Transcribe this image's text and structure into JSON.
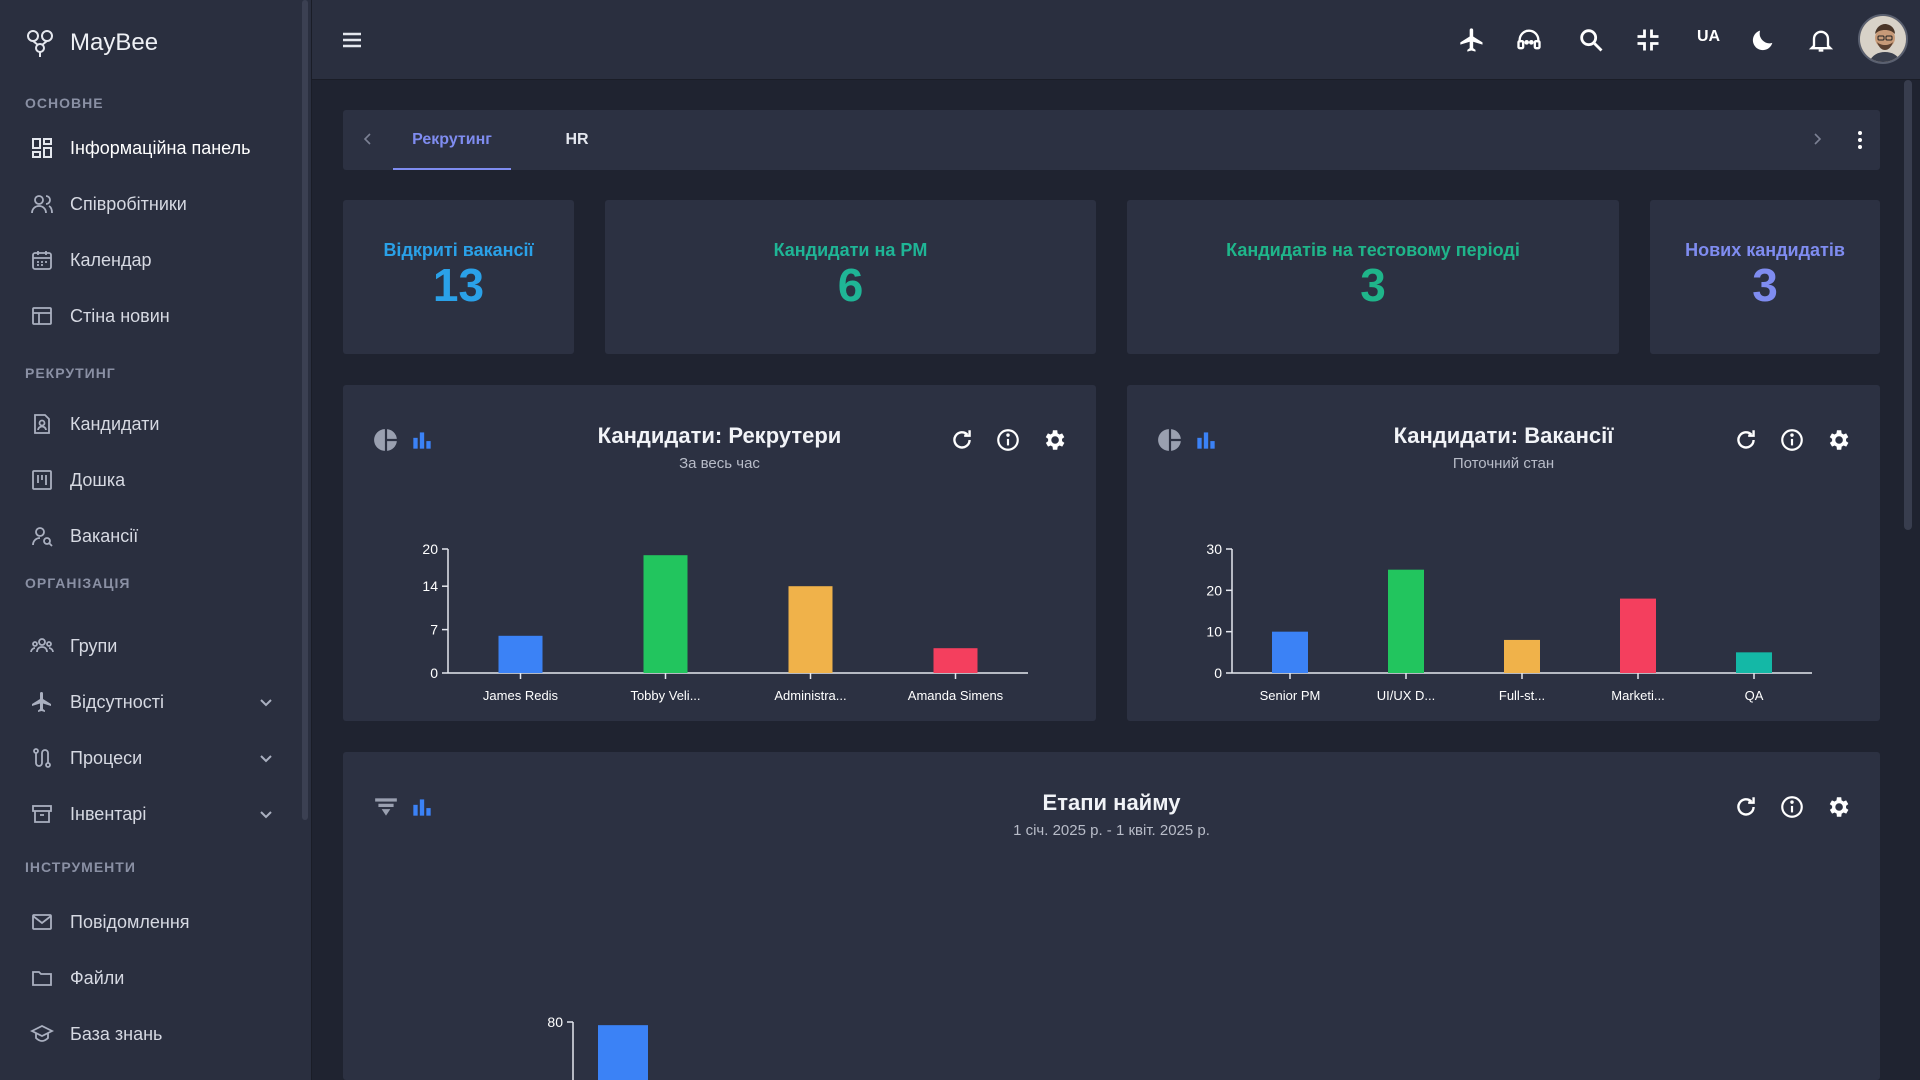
{
  "app": {
    "name": "MayBee"
  },
  "sidebar": {
    "sections": {
      "main": "ОСНОВНЕ",
      "recruiting": "РЕКРУТИНГ",
      "organization": "ОРГАНІЗАЦІЯ",
      "tools": "ІНСТРУМЕНТИ"
    },
    "items": {
      "dashboard": "Інформаційна панель",
      "employees": "Співробітники",
      "calendar": "Календар",
      "news": "Стіна новин",
      "candidates": "Кандидати",
      "board": "Дошка",
      "vacancies": "Вакансії",
      "groups": "Групи",
      "absences": "Відсутності",
      "processes": "Процеси",
      "inventory": "Інвентарі",
      "messages": "Повідомлення",
      "files": "Файли",
      "knowledge": "База знань"
    }
  },
  "topbar": {
    "language": "UA"
  },
  "tabs": [
    {
      "label": "Рекрутинг",
      "active": true
    },
    {
      "label": "HR",
      "active": false
    }
  ],
  "stats": [
    {
      "label": "Відкриті вакансії",
      "value": "13",
      "color": "#2aa1e8"
    },
    {
      "label": "Кандидати на PM",
      "value": "6",
      "color": "#1fb596"
    },
    {
      "label": "Кандидатів на тестовому періоді",
      "value": "3",
      "color": "#1fb58a"
    },
    {
      "label": "Нових кандидатів",
      "value": "3",
      "color": "#7f8cf0"
    }
  ],
  "panels": {
    "recruiters": {
      "title": "Кандидати: Рекрутери",
      "subtitle": "За весь час"
    },
    "vacancies": {
      "title": "Кандидати: Вакансії",
      "subtitle": "Поточний стан"
    },
    "stages": {
      "title": "Етапи найму",
      "subtitle": "1 січ. 2025 р. - 1 квіт. 2025 р."
    }
  },
  "chart_data": [
    {
      "type": "bar",
      "title": "Кандидати: Рекрутери",
      "categories": [
        "James Redis",
        "Tobby Veli...",
        "Administra...",
        "Amanda Simens"
      ],
      "values": [
        6,
        19,
        14,
        4
      ],
      "colors": [
        "#3b82f6",
        "#22c55e",
        "#f0b24a",
        "#f43f5e"
      ],
      "yticks": [
        0,
        7,
        14,
        20
      ],
      "ylim": [
        0,
        20
      ]
    },
    {
      "type": "bar",
      "title": "Кандидати: Вакансії",
      "categories": [
        "Senior PM",
        "UI/UX D...",
        "Full-st...",
        "Marketi...",
        "QA"
      ],
      "values": [
        10,
        25,
        8,
        18,
        5
      ],
      "colors": [
        "#3b82f6",
        "#22c55e",
        "#f0b24a",
        "#f43f5e",
        "#14b8a6"
      ],
      "yticks": [
        0,
        10,
        20,
        30
      ],
      "ylim": [
        0,
        30
      ]
    },
    {
      "type": "bar",
      "title": "Етапи найму",
      "categories": [
        ""
      ],
      "values": [
        77
      ],
      "colors": [
        "#3b82f6"
      ],
      "yticks": [
        80
      ],
      "ylim": [
        0,
        80
      ]
    }
  ]
}
